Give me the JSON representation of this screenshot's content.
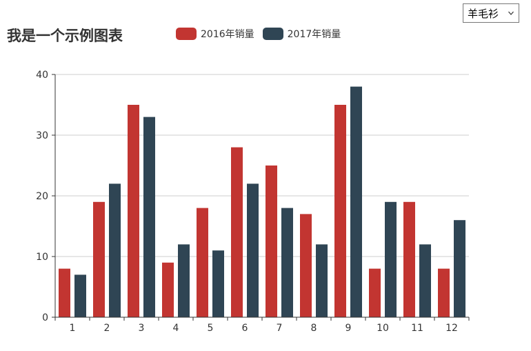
{
  "title": "我是一个示例图表",
  "selector": {
    "value": "羊毛衫",
    "icon": "chevron-down-icon"
  },
  "legend": [
    {
      "label": "2016年销量",
      "color": "#c23531"
    },
    {
      "label": "2017年销量",
      "color": "#2f4554"
    }
  ],
  "chart_data": {
    "type": "bar",
    "title": "我是一个示例图表",
    "categories": [
      "1",
      "2",
      "3",
      "4",
      "5",
      "6",
      "7",
      "8",
      "9",
      "10",
      "11",
      "12"
    ],
    "series": [
      {
        "name": "2016年销量",
        "color": "#c23531",
        "values": [
          8,
          19,
          35,
          9,
          18,
          28,
          25,
          17,
          35,
          8,
          19,
          8
        ]
      },
      {
        "name": "2017年销量",
        "color": "#2f4554",
        "values": [
          7,
          22,
          33,
          12,
          11,
          22,
          18,
          12,
          38,
          19,
          12,
          16
        ]
      }
    ],
    "yticks": [
      "0",
      "10",
      "20",
      "30",
      "40"
    ],
    "ylim": [
      0,
      40
    ],
    "grid": true,
    "legend_position": "top"
  }
}
